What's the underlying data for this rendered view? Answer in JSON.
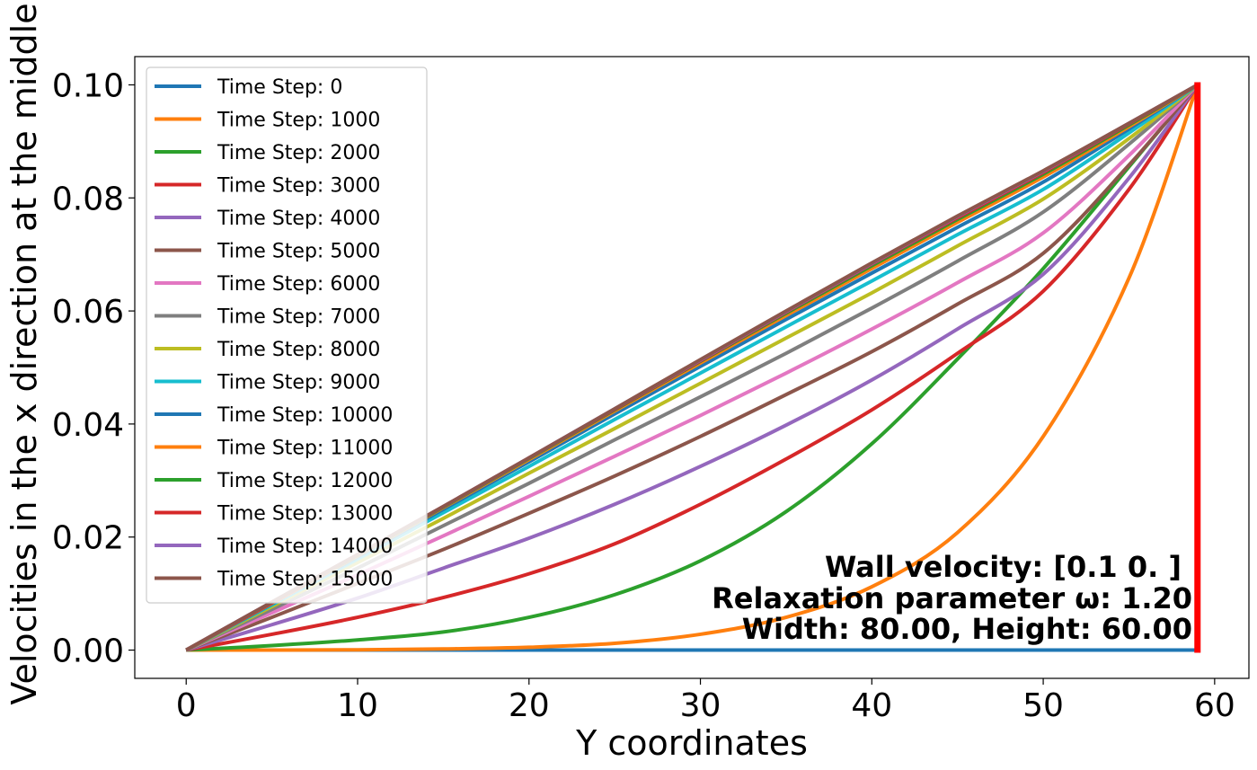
{
  "chart_data": {
    "type": "line",
    "xlabel": "Y coordinates",
    "ylabel": "Velocities in the x direction at the middle",
    "xlim": [
      -3,
      62
    ],
    "ylim": [
      -0.005,
      0.105
    ],
    "xticks": [
      0,
      10,
      20,
      30,
      40,
      50,
      60
    ],
    "xtick_labels": [
      "0",
      "10",
      "20",
      "30",
      "40",
      "50",
      "60"
    ],
    "yticks": [
      0.0,
      0.02,
      0.04,
      0.06,
      0.08,
      0.1
    ],
    "ytick_labels": [
      "0.00",
      "0.02",
      "0.04",
      "0.06",
      "0.08",
      "0.10"
    ],
    "grid": false,
    "legend_position": "upper-left",
    "x": [
      0,
      5,
      10,
      15,
      20,
      25,
      30,
      35,
      40,
      45,
      50,
      55,
      59
    ],
    "series": [
      {
        "name": "Time Step: 0",
        "color": "#1f77b4",
        "values": [
          0,
          0,
          0,
          0,
          0,
          0,
          0,
          0,
          0,
          0,
          0,
          0,
          0
        ]
      },
      {
        "name": "Time Step: 1000",
        "color": "#ff7f0e",
        "values": [
          0,
          1e-05,
          5e-05,
          0.0002,
          0.0005,
          0.0012,
          0.0028,
          0.0058,
          0.0112,
          0.0208,
          0.0378,
          0.0658,
          0.1
        ]
      },
      {
        "name": "Time Step: 2000",
        "color": "#2ca02c",
        "values": [
          0,
          0.0008,
          0.0018,
          0.0032,
          0.0058,
          0.0098,
          0.0158,
          0.0245,
          0.0365,
          0.0515,
          0.0675,
          0.0855,
          0.1
        ]
      },
      {
        "name": "Time Step: 3000",
        "color": "#d62728",
        "values": [
          0,
          0.0028,
          0.0058,
          0.0093,
          0.0135,
          0.0188,
          0.0258,
          0.0338,
          0.0425,
          0.0525,
          0.0635,
          0.0815,
          0.1
        ]
      },
      {
        "name": "Time Step: 4000",
        "color": "#9467bd",
        "values": [
          0,
          0.0045,
          0.0092,
          0.0145,
          0.0198,
          0.0258,
          0.0325,
          0.0398,
          0.0478,
          0.0568,
          0.0665,
          0.0835,
          0.1
        ]
      },
      {
        "name": "Time Step: 5000",
        "color": "#8c564b",
        "values": [
          0,
          0.0058,
          0.0118,
          0.0178,
          0.0242,
          0.0308,
          0.0378,
          0.0452,
          0.0528,
          0.0612,
          0.0702,
          0.0858,
          0.1
        ]
      },
      {
        "name": "Time Step: 6000",
        "color": "#e377c2",
        "values": [
          0,
          0.0066,
          0.0133,
          0.0202,
          0.0272,
          0.0343,
          0.0415,
          0.049,
          0.0568,
          0.065,
          0.0738,
          0.0875,
          0.1
        ]
      },
      {
        "name": "Time Step: 7000",
        "color": "#7f7f7f",
        "values": [
          0,
          0.0072,
          0.0145,
          0.022,
          0.0295,
          0.0372,
          0.0448,
          0.0525,
          0.0605,
          0.0688,
          0.0775,
          0.0895,
          0.1
        ]
      },
      {
        "name": "Time Step: 8000",
        "color": "#bcbd22",
        "values": [
          0,
          0.0077,
          0.0155,
          0.0233,
          0.0313,
          0.0392,
          0.0472,
          0.0552,
          0.0632,
          0.0715,
          0.0798,
          0.0905,
          0.1
        ]
      },
      {
        "name": "Time Step: 9000",
        "color": "#17becf",
        "values": [
          0,
          0.008,
          0.0161,
          0.0243,
          0.0325,
          0.0408,
          0.049,
          0.0572,
          0.0653,
          0.0735,
          0.0815,
          0.0915,
          0.1
        ]
      },
      {
        "name": "Time Step: 10000",
        "color": "#1f77b4",
        "values": [
          0,
          0.0082,
          0.0165,
          0.0249,
          0.0333,
          0.0418,
          0.0502,
          0.0585,
          0.0667,
          0.0748,
          0.0828,
          0.0922,
          0.1
        ]
      },
      {
        "name": "Time Step: 11000",
        "color": "#ff7f0e",
        "values": [
          0,
          0.0083,
          0.0167,
          0.0252,
          0.0337,
          0.0423,
          0.0508,
          0.0592,
          0.0675,
          0.0757,
          0.0837,
          0.0926,
          0.1
        ]
      },
      {
        "name": "Time Step: 12000",
        "color": "#2ca02c",
        "values": [
          0,
          0.0084,
          0.0168,
          0.0253,
          0.0339,
          0.0425,
          0.0511,
          0.0596,
          0.068,
          0.0762,
          0.0842,
          0.0929,
          0.1
        ]
      },
      {
        "name": "Time Step: 13000",
        "color": "#d62728",
        "values": [
          0,
          0.0084,
          0.0169,
          0.0254,
          0.034,
          0.0426,
          0.0512,
          0.0598,
          0.0683,
          0.0765,
          0.0845,
          0.0931,
          0.1
        ]
      },
      {
        "name": "Time Step: 14000",
        "color": "#9467bd",
        "values": [
          0,
          0.0085,
          0.0169,
          0.0254,
          0.034,
          0.0427,
          0.0513,
          0.0599,
          0.0684,
          0.0767,
          0.0847,
          0.0932,
          0.1
        ]
      },
      {
        "name": "Time Step: 15000",
        "color": "#8c564b",
        "values": [
          0,
          0.0085,
          0.0169,
          0.0254,
          0.034,
          0.0427,
          0.0514,
          0.06,
          0.0685,
          0.0768,
          0.0848,
          0.0932,
          0.1
        ]
      }
    ],
    "wall": {
      "x": 59,
      "y_range": [
        0,
        0.1
      ],
      "color": "#ff0000"
    },
    "annotations": [
      "Wall velocity: [0.1 0. ]",
      "Relaxation parameter ω: 1.20",
      "Width: 80.00, Height: 60.00"
    ]
  }
}
